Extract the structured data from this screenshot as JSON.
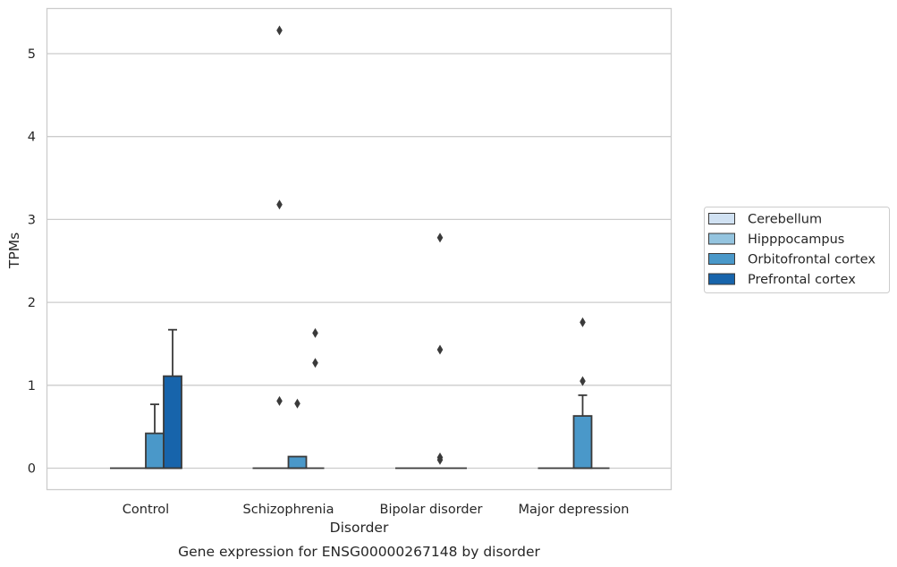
{
  "chart_data": {
    "type": "box",
    "title": "",
    "caption": "Gene expression for ENSG00000267148 by disorder",
    "xlabel": "Disorder",
    "ylabel": "TPMs",
    "ylim": [
      -0.26,
      5.55
    ],
    "yticks": [
      0,
      1,
      2,
      3,
      4,
      5
    ],
    "grid": "horizontal",
    "legend_position": "right",
    "categories": [
      "Control",
      "Schizophrenia",
      "Bipolar disorder",
      "Major depression"
    ],
    "series": [
      {
        "name": "Cerebellum",
        "color": "#d0e1f2",
        "boxes": [
          {
            "q1": 0,
            "median": 0,
            "q3": 0,
            "whisker_low": 0,
            "whisker_high": 0,
            "outliers": []
          },
          {
            "q1": 0,
            "median": 0,
            "q3": 0,
            "whisker_low": 0,
            "whisker_high": 0,
            "outliers": []
          },
          {
            "q1": 0,
            "median": 0,
            "q3": 0,
            "whisker_low": 0,
            "whisker_high": 0,
            "outliers": []
          },
          {
            "q1": 0,
            "median": 0,
            "q3": 0,
            "whisker_low": 0,
            "whisker_high": 0,
            "outliers": []
          }
        ]
      },
      {
        "name": "Hipppocampus",
        "color": "#94c4df",
        "boxes": [
          {
            "q1": 0,
            "median": 0,
            "q3": 0,
            "whisker_low": 0,
            "whisker_high": 0,
            "outliers": []
          },
          {
            "q1": 0,
            "median": 0,
            "q3": 0,
            "whisker_low": 0,
            "whisker_high": 0,
            "outliers": [
              0.81,
              5.28,
              3.18
            ]
          },
          {
            "q1": 0,
            "median": 0,
            "q3": 0,
            "whisker_low": 0,
            "whisker_high": 0,
            "outliers": []
          },
          {
            "q1": 0,
            "median": 0,
            "q3": 0,
            "whisker_low": 0,
            "whisker_high": 0,
            "outliers": []
          }
        ]
      },
      {
        "name": "Orbitofrontal cortex",
        "color": "#4a98c9",
        "boxes": [
          {
            "q1": 0,
            "median": 0,
            "q3": 0.42,
            "whisker_low": 0,
            "whisker_high": 0.77,
            "outliers": []
          },
          {
            "q1": 0,
            "median": 0,
            "q3": 0.14,
            "whisker_low": 0,
            "whisker_high": 0.14,
            "outliers": [
              0.78
            ]
          },
          {
            "q1": 0,
            "median": 0,
            "q3": 0,
            "whisker_low": 0,
            "whisker_high": 0,
            "outliers": [
              0.13,
              0.1,
              2.78,
              1.43
            ]
          },
          {
            "q1": 0,
            "median": 0,
            "q3": 0.63,
            "whisker_low": 0,
            "whisker_high": 0.88,
            "outliers": [
              1.05,
              1.76
            ]
          }
        ]
      },
      {
        "name": "Prefrontal cortex",
        "color": "#1764ab",
        "boxes": [
          {
            "q1": 0,
            "median": 0,
            "q3": 1.11,
            "whisker_low": 0,
            "whisker_high": 1.67,
            "outliers": []
          },
          {
            "q1": 0,
            "median": 0,
            "q3": 0,
            "whisker_low": 0,
            "whisker_high": 0,
            "outliers": [
              1.63,
              1.27
            ]
          },
          {
            "q1": 0,
            "median": 0,
            "q3": 0,
            "whisker_low": 0,
            "whisker_high": 0,
            "outliers": []
          },
          {
            "q1": 0,
            "median": 0,
            "q3": 0,
            "whisker_low": 0,
            "whisker_high": 0,
            "outliers": []
          }
        ]
      }
    ],
    "colors": {
      "grid": "#cccccc",
      "frame": "#cccccc",
      "box_edge": "#3a3a3a",
      "outlier": "#3a3a3a",
      "text": "#262626"
    }
  }
}
